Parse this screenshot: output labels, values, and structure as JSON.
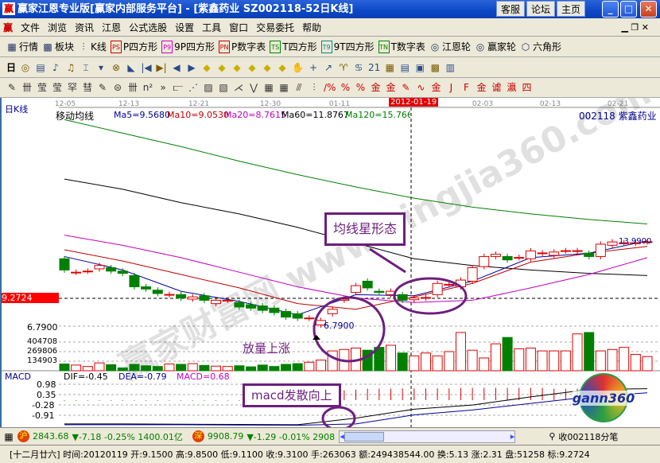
{
  "window": {
    "title": "赢家江恩专业版[赢家内部服务平台] - [紫鑫药业   SZ002118-52日K线]",
    "logo": "赢",
    "buttons": [
      "客服",
      "论坛",
      "主页"
    ],
    "controls": [
      "minimize-icon",
      "maximize-icon",
      "close-icon"
    ]
  },
  "menu": {
    "logo": "赢",
    "items": [
      "文件",
      "浏览",
      "资讯",
      "江恩",
      "公式选股",
      "设置",
      "工具",
      "窗口",
      "交易委托",
      "帮助"
    ]
  },
  "toolbar1": [
    {
      "icon": "table-icon",
      "label": "行情"
    },
    {
      "icon": "blocks-icon",
      "label": "板块"
    },
    {
      "icon": "kline-icon",
      "label": "K线"
    },
    {
      "icon": "PS",
      "label": "P四方形"
    },
    {
      "icon": "P9",
      "label": "9P四方形"
    },
    {
      "icon": "PN",
      "label": "P数字表"
    },
    {
      "icon": "TS",
      "label": "T四方形"
    },
    {
      "icon": "T9",
      "label": "9T四方形"
    },
    {
      "icon": "TN",
      "label": "T数字表"
    },
    {
      "icon": "wheel-icon",
      "label": "江恩轮"
    },
    {
      "icon": "wheel-icon",
      "label": "赢家轮"
    },
    {
      "icon": "hexagon-icon",
      "label": "六角形"
    }
  ],
  "toolbar2": {
    "period": "日",
    "icons": [
      "◎",
      "▤",
      "♪",
      "♫",
      "⌶",
      "▾",
      "⊗",
      "◣",
      "|◀",
      "▶|",
      "◀",
      "▶",
      "◆",
      "◆",
      "◆",
      "◆",
      "◆",
      "◆",
      "✋",
      "+",
      "↗",
      "♈",
      "♋",
      "21",
      "▦",
      "▤",
      "▣",
      "▩",
      "▥"
    ]
  },
  "toolbar3": {
    "icons": [
      "✎",
      "卌",
      "莹",
      "莹",
      "罕",
      "彗",
      "✎",
      "⊜",
      "卌",
      "n²",
      "»",
      "⫍",
      "⋰",
      "▨",
      "▧",
      "⋌",
      "⋁",
      "▦",
      "▦",
      "⫻",
      "⫶",
      "∕%",
      "%",
      "%",
      "金",
      "金",
      "✎",
      "∿",
      "金",
      "J",
      "F",
      "金",
      "谑",
      "瀛",
      "四"
    ]
  },
  "chart": {
    "period_label": "日K线",
    "indicator": "移动均线",
    "ma_labels": [
      {
        "text": "Ma5=9.5680",
        "color": "#0000a0"
      },
      {
        "text": "Ma10=9.0530",
        "color": "#c00000"
      },
      {
        "text": "Ma20=8.7615",
        "color": "#c000c0"
      },
      {
        "text": "Ma60=11.8767",
        "color": "#000000"
      },
      {
        "text": "Ma120=15.7669",
        "color": "#008000"
      }
    ],
    "stock": "002118  紫鑫药业",
    "dates": [
      "12-05",
      "12-13",
      "12-21",
      "12-30",
      "01-11",
      "02-03",
      "02-13",
      "02-21"
    ],
    "cursor_date": "2012-01-19",
    "cursor_price": "9.2724",
    "low_label": "6.7900",
    "high_label": "13.9900",
    "y_labels": {
      "price": "6.7900",
      "volume": [
        "404708",
        "269806",
        "134903"
      ]
    },
    "candles": [
      [
        12.8,
        11.8
      ],
      [
        11.6,
        11.6
      ],
      [
        11.7,
        11.7
      ],
      [
        11.9,
        12.2
      ],
      [
        12.0,
        11.7
      ],
      [
        11.7,
        11.5
      ],
      [
        11.3,
        10.3
      ],
      [
        10.3,
        10.1
      ],
      [
        10.0,
        9.7
      ],
      [
        9.6,
        9.62
      ],
      [
        9.6,
        9.3
      ],
      [
        9.2,
        9.4
      ],
      [
        9.5,
        9.1
      ],
      [
        8.8,
        9.1
      ],
      [
        9.1,
        9.1
      ],
      [
        8.9,
        8.5
      ],
      [
        8.7,
        8.4
      ],
      [
        8.6,
        8.2
      ],
      [
        8.4,
        8.0
      ],
      [
        8.1,
        7.6
      ],
      [
        7.9,
        7.5
      ],
      [
        7.5,
        7.52
      ],
      [
        6.9,
        7.3
      ],
      [
        7.9,
        8.3
      ],
      [
        9.1,
        9.2
      ],
      [
        9.8,
        10.4
      ],
      [
        10.8,
        10.2
      ],
      [
        9.9,
        9.8
      ],
      [
        9.6,
        9.9
      ],
      [
        9.6,
        9.1
      ],
      [
        9.15,
        9.31
      ],
      [
        9.3,
        9.35
      ],
      [
        9.6,
        10.6
      ],
      [
        10.5,
        10.52
      ],
      [
        10.3,
        10.9
      ],
      [
        10.8,
        12.0
      ],
      [
        12.1,
        13.0
      ],
      [
        13.0,
        13.2
      ],
      [
        13.0,
        12.7
      ],
      [
        12.9,
        12.92
      ],
      [
        12.8,
        13.5
      ],
      [
        13.3,
        13.32
      ],
      [
        13.1,
        13.4
      ],
      [
        13.5,
        13.52
      ],
      [
        13.5,
        13.52
      ],
      [
        13.3,
        13.0
      ],
      [
        13.0,
        14.1
      ],
      [
        14.0,
        14.3
      ],
      [
        14.2,
        14.22
      ],
      [
        14.2,
        14.22
      ],
      [
        14.3,
        14.32
      ]
    ],
    "volume": [
      95000,
      80000,
      60000,
      110000,
      85000,
      40000,
      90000,
      70000,
      60000,
      95000,
      90000,
      100000,
      75000,
      65000,
      60000,
      70000,
      55000,
      80000,
      60000,
      90000,
      100000,
      120000,
      150000,
      280000,
      300000,
      320000,
      290000,
      330000,
      360000,
      250000,
      210000,
      250000,
      210000,
      270000,
      540000,
      290000,
      180000,
      380000,
      470000,
      310000,
      320000,
      280000,
      280000,
      280000,
      520000,
      540000,
      280000,
      300000,
      330000,
      230000,
      200000
    ],
    "ma": {
      "ma120": [
        25.2,
        24.0,
        22.8,
        21.5,
        20.3,
        19.2,
        18.2,
        17.4,
        16.8,
        16.3,
        15.9
      ],
      "ma60": [
        19.9,
        19.0,
        17.8,
        16.8,
        15.6,
        14.2,
        12.8,
        12.2,
        11.8,
        11.5,
        11.3
      ],
      "ma20": [
        14.9,
        14.0,
        12.9,
        11.6,
        10.3,
        9.3,
        8.9,
        9.1,
        10.2,
        11.4,
        12.9
      ],
      "ma10": [
        13.6,
        12.6,
        11.4,
        10.2,
        8.8,
        8.3,
        9.4,
        10.6,
        12.5,
        13.3,
        13.9
      ],
      "ma5": [
        13.0,
        11.8,
        9.9,
        9.0,
        7.8,
        9.6,
        9.5,
        10.8,
        12.9,
        13.3,
        14.4
      ]
    },
    "annotations": {
      "ma_star": "均线星形态",
      "volume": "放量上涨",
      "macd": "macd发散向上"
    },
    "watermark": "赢家财富网 www.yingjia360.com QQ:1731457646"
  },
  "macd": {
    "label": "MACD",
    "dif": "DIF=-0.45",
    "dea": "DEA=-0.79",
    "macd": "MACD=0.68",
    "y_labels": [
      "0.98",
      "0.35",
      "-0.28",
      "-0.91"
    ],
    "dif_values": [
      -1.45,
      -1.45,
      -1.47,
      -1.48,
      -1.5,
      -1.1,
      -0.55,
      -0.3,
      0.2,
      0.65,
      0.7
    ],
    "dea_values": [
      -1.5,
      -1.5,
      -1.5,
      -1.52,
      -1.53,
      -1.45,
      -0.9,
      -0.6,
      -0.2,
      0.2,
      0.45
    ],
    "bars": [
      -0.04,
      -0.04,
      -0.04,
      -0.04,
      -0.04,
      -0.04,
      -0.04,
      -0.04,
      -0.04,
      -0.04,
      -0.04,
      -0.04,
      -0.04,
      -0.04,
      -0.04,
      -0.04,
      0,
      0,
      0,
      0,
      0,
      0,
      0,
      0,
      0.6,
      0.65,
      0.7,
      0.7,
      0.7,
      0.72,
      0.72,
      0.72,
      0.72,
      0.72,
      0.75,
      0.75,
      0.75,
      0.75,
      0.75,
      0.75,
      0.75,
      0.75,
      0.7,
      0.7,
      0.7,
      0.7,
      0.7,
      0.7,
      0,
      0,
      0
    ],
    "logo": "gann360"
  },
  "status1": {
    "sh_icon": "沪",
    "sh": "2843.68",
    "sh_chg": "▼-7.18 -0.25% 1400.01亿",
    "sz_icon": "深",
    "sz": "9908.79",
    "sz_chg": "▼-1.29 -0.01% 2908.99亿",
    "tick": "收002118分笔"
  },
  "status2": {
    "text": "[十二月廿六] 时间:20120119 开:9.1500 高:9.8500 低:9.1100 收:9.3100 手:263063 额:249438544.00 换:5.13 涨:2.31 盘:51258 标:9.2724"
  },
  "colors": {
    "up": "#e00000",
    "down": "#008000",
    "annotation": "#6c1f7d",
    "titlebar": "#0b47c7"
  }
}
